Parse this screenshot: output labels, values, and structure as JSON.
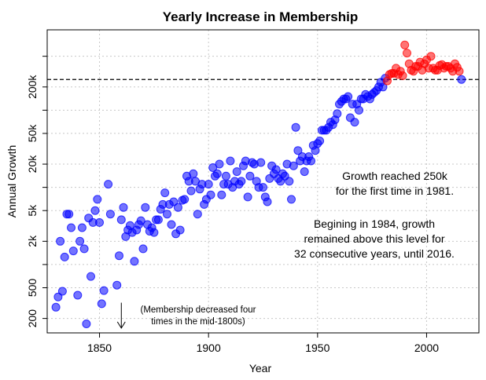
{
  "chart_data": {
    "type": "scatter",
    "title": "Yearly Increase in Membership",
    "xlabel": "Year",
    "ylabel": "Annual Growth",
    "log_y": true,
    "xlim": [
      1826,
      2024
    ],
    "ylim": [
      130,
      1100000
    ],
    "x_ticks": [
      1850,
      1900,
      1950,
      2000
    ],
    "x_tick_labels": [
      "1850",
      "1900",
      "1950",
      "2000"
    ],
    "y_ticks": [
      200,
      500,
      2000,
      5000,
      20000,
      50000,
      200000
    ],
    "y_tick_labels": [
      "200",
      "500",
      "2k",
      "5k",
      "20k",
      "50k",
      "200k"
    ],
    "y_minor_ticks": [
      1000,
      10000,
      100000,
      500000
    ],
    "grid": true,
    "reference_line": {
      "value": 250000,
      "style": "dashed"
    },
    "colors": {
      "below": "#0000ff",
      "above": "#ff0000",
      "reference": "#000000",
      "grid": "#c8c8c8"
    },
    "annotations": {
      "growth_reached": [
        "Growth reached 250k",
        "for the first time in 1981."
      ],
      "beginning_1984": [
        "Begining in 1984, growth",
        "remained above this level for",
        "32 consecutive years, until 2016."
      ],
      "decrease_note": [
        "(Membership decreased four",
        "times in the mid-1800s)"
      ]
    },
    "decrease_arrow": {
      "x": 1860,
      "y_from": 320,
      "y_to": 150
    },
    "series": [
      {
        "color": "#0000ff",
        "points": [
          [
            1830,
            280
          ],
          [
            1831,
            380
          ],
          [
            1832,
            2000
          ],
          [
            1833,
            450
          ],
          [
            1834,
            1250
          ],
          [
            1835,
            4500
          ],
          [
            1836,
            4500
          ],
          [
            1837,
            3000
          ],
          [
            1838,
            1500
          ],
          [
            1840,
            400
          ],
          [
            1841,
            2000
          ],
          [
            1842,
            3000
          ],
          [
            1843,
            1600
          ],
          [
            1844,
            170
          ],
          [
            1845,
            4000
          ],
          [
            1846,
            700
          ],
          [
            1847,
            3500
          ],
          [
            1848,
            5000
          ],
          [
            1849,
            7000
          ],
          [
            1850,
            3500
          ],
          [
            1851,
            310
          ],
          [
            1852,
            460
          ],
          [
            1854,
            11000
          ],
          [
            1855,
            4500
          ],
          [
            1858,
            540
          ],
          [
            1859,
            1300
          ],
          [
            1860,
            3800
          ],
          [
            1861,
            5500
          ],
          [
            1862,
            2300
          ],
          [
            1863,
            2800
          ],
          [
            1864,
            3200
          ],
          [
            1865,
            2600
          ],
          [
            1866,
            1100
          ],
          [
            1867,
            2800
          ],
          [
            1868,
            3300
          ],
          [
            1869,
            3700
          ],
          [
            1870,
            1600
          ],
          [
            1871,
            5500
          ],
          [
            1872,
            3300
          ],
          [
            1873,
            2700
          ],
          [
            1874,
            3000
          ],
          [
            1875,
            2600
          ],
          [
            1876,
            3800
          ],
          [
            1877,
            3800
          ],
          [
            1878,
            5200
          ],
          [
            1879,
            6000
          ],
          [
            1880,
            8500
          ],
          [
            1881,
            4500
          ],
          [
            1882,
            6000
          ],
          [
            1883,
            3300
          ],
          [
            1884,
            6500
          ],
          [
            1885,
            2500
          ],
          [
            1886,
            5500
          ],
          [
            1887,
            2800
          ],
          [
            1888,
            6800
          ],
          [
            1889,
            7000
          ],
          [
            1890,
            14000
          ],
          [
            1891,
            12000
          ],
          [
            1892,
            9000
          ],
          [
            1893,
            15000
          ],
          [
            1894,
            12000
          ],
          [
            1895,
            4500
          ],
          [
            1896,
            9500
          ],
          [
            1897,
            11000
          ],
          [
            1898,
            6000
          ],
          [
            1899,
            7000
          ],
          [
            1900,
            11000
          ],
          [
            1901,
            8000
          ],
          [
            1902,
            18000
          ],
          [
            1903,
            14000
          ],
          [
            1904,
            15000
          ],
          [
            1905,
            20000
          ],
          [
            1906,
            8000
          ],
          [
            1907,
            11000
          ],
          [
            1908,
            14000
          ],
          [
            1909,
            11000
          ],
          [
            1910,
            22000
          ],
          [
            1911,
            10000
          ],
          [
            1912,
            12000
          ],
          [
            1913,
            16000
          ],
          [
            1914,
            11000
          ],
          [
            1915,
            12000
          ],
          [
            1916,
            19000
          ],
          [
            1917,
            22000
          ],
          [
            1918,
            7500
          ],
          [
            1919,
            14000
          ],
          [
            1920,
            21000
          ],
          [
            1921,
            20000
          ],
          [
            1922,
            12000
          ],
          [
            1923,
            10000
          ],
          [
            1924,
            21000
          ],
          [
            1925,
            10000
          ],
          [
            1926,
            7500
          ],
          [
            1927,
            6500
          ],
          [
            1928,
            13000
          ],
          [
            1929,
            19000
          ],
          [
            1930,
            15000
          ],
          [
            1931,
            17000
          ],
          [
            1932,
            13000
          ],
          [
            1933,
            12000
          ],
          [
            1934,
            15000
          ],
          [
            1935,
            14000
          ],
          [
            1936,
            20000
          ],
          [
            1937,
            12000
          ],
          [
            1938,
            7000
          ],
          [
            1939,
            19000
          ],
          [
            1940,
            60000
          ],
          [
            1941,
            30000
          ],
          [
            1942,
            22000
          ],
          [
            1943,
            25000
          ],
          [
            1944,
            16000
          ],
          [
            1945,
            22000
          ],
          [
            1946,
            25000
          ],
          [
            1947,
            22000
          ],
          [
            1948,
            35000
          ],
          [
            1949,
            30000
          ],
          [
            1950,
            37000
          ],
          [
            1951,
            40000
          ],
          [
            1952,
            55000
          ],
          [
            1953,
            55000
          ],
          [
            1954,
            55000
          ],
          [
            1955,
            60000
          ],
          [
            1956,
            70000
          ],
          [
            1957,
            65000
          ],
          [
            1958,
            75000
          ],
          [
            1959,
            90000
          ],
          [
            1960,
            120000
          ],
          [
            1961,
            130000
          ],
          [
            1962,
            140000
          ],
          [
            1963,
            140000
          ],
          [
            1964,
            150000
          ],
          [
            1965,
            80000
          ],
          [
            1966,
            120000
          ],
          [
            1967,
            70000
          ],
          [
            1968,
            120000
          ],
          [
            1969,
            100000
          ],
          [
            1970,
            140000
          ],
          [
            1971,
            140000
          ],
          [
            1972,
            160000
          ],
          [
            1973,
            150000
          ],
          [
            1974,
            140000
          ],
          [
            1975,
            160000
          ],
          [
            1976,
            170000
          ],
          [
            1977,
            180000
          ],
          [
            1978,
            200000
          ],
          [
            1979,
            230000
          ],
          [
            1980,
            200000
          ],
          [
            1981,
            260000
          ],
          [
            2016,
            250000
          ]
        ]
      },
      {
        "color": "#ff0000",
        "points": [
          [
            1982,
            240000
          ],
          [
            1983,
            290000
          ],
          [
            1984,
            300000
          ],
          [
            1985,
            300000
          ],
          [
            1986,
            350000
          ],
          [
            1987,
            290000
          ],
          [
            1988,
            320000
          ],
          [
            1989,
            280000
          ],
          [
            1990,
            700000
          ],
          [
            1991,
            550000
          ],
          [
            1992,
            400000
          ],
          [
            1993,
            330000
          ],
          [
            1994,
            320000
          ],
          [
            1995,
            370000
          ],
          [
            1996,
            370000
          ],
          [
            1997,
            420000
          ],
          [
            1998,
            330000
          ],
          [
            1999,
            400000
          ],
          [
            2000,
            450000
          ],
          [
            2001,
            350000
          ],
          [
            2002,
            500000
          ],
          [
            2003,
            350000
          ],
          [
            2004,
            330000
          ],
          [
            2005,
            330000
          ],
          [
            2006,
            380000
          ],
          [
            2007,
            390000
          ],
          [
            2008,
            350000
          ],
          [
            2009,
            370000
          ],
          [
            2010,
            370000
          ],
          [
            2011,
            350000
          ],
          [
            2012,
            320000
          ],
          [
            2013,
            400000
          ],
          [
            2014,
            360000
          ],
          [
            2015,
            320000
          ]
        ]
      }
    ]
  }
}
